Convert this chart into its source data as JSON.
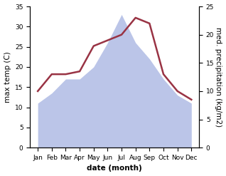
{
  "months": [
    "Jan",
    "Feb",
    "Mar",
    "Apr",
    "May",
    "Jun",
    "Jul",
    "Aug",
    "Sep",
    "Oct",
    "Nov",
    "Dec"
  ],
  "temperature": [
    11,
    13.5,
    17,
    17,
    20,
    26,
    33,
    26,
    22,
    17,
    13,
    11
  ],
  "precipitation": [
    10,
    13,
    13,
    13.5,
    18,
    19,
    20,
    23,
    22,
    13,
    10,
    8.5
  ],
  "temp_fill_color": "#bbc5e8",
  "precip_color": "#993344",
  "ylim_temp": [
    0,
    35
  ],
  "ylim_precip": [
    0,
    25
  ],
  "yticks_temp": [
    0,
    5,
    10,
    15,
    20,
    25,
    30,
    35
  ],
  "yticks_precip": [
    0,
    5,
    10,
    15,
    20,
    25
  ],
  "xlabel": "date (month)",
  "ylabel_left": "max temp (C)",
  "ylabel_right": "med. precipitation (kg/m2)",
  "label_fontsize": 7.5,
  "tick_fontsize": 6.5
}
